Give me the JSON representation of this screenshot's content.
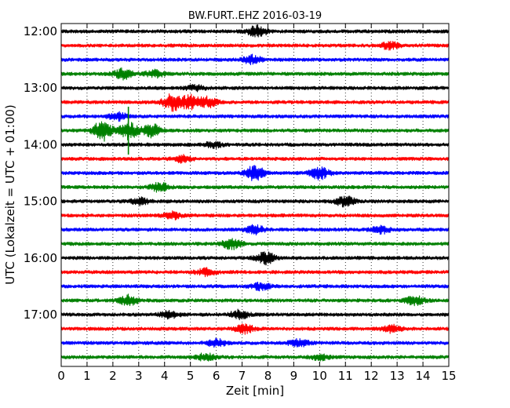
{
  "chart_data": {
    "type": "line",
    "title": "BW.FURT..EHZ 2016-03-19",
    "xlabel": "Zeit  [min]",
    "ylabel": "UTC (Lokalzeit = UTC + 01:00)",
    "xlim": [
      0,
      15
    ],
    "x_ticks": [
      "0",
      "1",
      "2",
      "3",
      "4",
      "5",
      "6",
      "7",
      "8",
      "9",
      "10",
      "11",
      "12",
      "13",
      "14",
      "15"
    ],
    "y_ticks": [
      "12:00",
      "13:00",
      "14:00",
      "15:00",
      "16:00",
      "17:00"
    ],
    "grid": "vertical dotted",
    "trace_row_minutes": 15,
    "trace_colors": [
      "#000000",
      "#ff0000",
      "#0000ff",
      "#008000"
    ],
    "traces": [
      {
        "start": "12:00",
        "color": "#000000",
        "events": [
          {
            "t": 7.6,
            "amp": 7
          }
        ]
      },
      {
        "start": "12:15",
        "color": "#ff0000",
        "events": [
          {
            "t": 12.7,
            "amp": 4
          }
        ]
      },
      {
        "start": "12:30",
        "color": "#0000ff",
        "events": [
          {
            "t": 7.4,
            "amp": 5
          }
        ]
      },
      {
        "start": "12:45",
        "color": "#008000",
        "events": [
          {
            "t": 2.4,
            "amp": 6
          },
          {
            "t": 3.6,
            "amp": 4
          }
        ]
      },
      {
        "start": "13:00",
        "color": "#000000",
        "events": [
          {
            "t": 5.2,
            "amp": 3
          }
        ]
      },
      {
        "start": "13:15",
        "color": "#ff0000",
        "events": [
          {
            "t": 4.3,
            "amp": 10
          },
          {
            "t": 5.0,
            "amp": 8
          },
          {
            "t": 5.7,
            "amp": 6
          }
        ]
      },
      {
        "start": "13:30",
        "color": "#0000ff",
        "events": [
          {
            "t": 2.2,
            "amp": 5
          }
        ]
      },
      {
        "start": "13:45",
        "color": "#008000",
        "events": [
          {
            "t": 1.6,
            "amp": 12
          },
          {
            "t": 2.6,
            "amp": 10
          },
          {
            "t": 3.5,
            "amp": 8
          }
        ]
      },
      {
        "start": "14:00",
        "color": "#000000",
        "events": [
          {
            "t": 5.9,
            "amp": 3
          }
        ]
      },
      {
        "start": "14:15",
        "color": "#ff0000",
        "events": [
          {
            "t": 4.7,
            "amp": 4
          }
        ]
      },
      {
        "start": "14:30",
        "color": "#0000ff",
        "events": [
          {
            "t": 7.5,
            "amp": 9
          },
          {
            "t": 10.0,
            "amp": 7
          }
        ]
      },
      {
        "start": "14:45",
        "color": "#008000",
        "events": [
          {
            "t": 3.8,
            "amp": 5
          }
        ]
      },
      {
        "start": "15:00",
        "color": "#000000",
        "events": [
          {
            "t": 11.0,
            "amp": 6
          },
          {
            "t": 3.0,
            "amp": 4
          }
        ]
      },
      {
        "start": "15:15",
        "color": "#ff0000",
        "events": [
          {
            "t": 4.3,
            "amp": 4
          }
        ]
      },
      {
        "start": "15:30",
        "color": "#0000ff",
        "events": [
          {
            "t": 7.5,
            "amp": 5
          },
          {
            "t": 12.4,
            "amp": 4
          }
        ]
      },
      {
        "start": "15:45",
        "color": "#008000",
        "events": [
          {
            "t": 6.6,
            "amp": 6
          }
        ]
      },
      {
        "start": "16:00",
        "color": "#000000",
        "events": [
          {
            "t": 7.9,
            "amp": 7
          }
        ]
      },
      {
        "start": "16:15",
        "color": "#ff0000",
        "events": [
          {
            "t": 5.6,
            "amp": 4
          }
        ]
      },
      {
        "start": "16:30",
        "color": "#0000ff",
        "events": [
          {
            "t": 7.7,
            "amp": 4
          }
        ]
      },
      {
        "start": "16:45",
        "color": "#008000",
        "events": [
          {
            "t": 2.6,
            "amp": 6
          },
          {
            "t": 13.7,
            "amp": 5
          }
        ]
      },
      {
        "start": "17:00",
        "color": "#000000",
        "events": [
          {
            "t": 6.9,
            "amp": 5
          },
          {
            "t": 4.2,
            "amp": 4
          }
        ]
      },
      {
        "start": "17:15",
        "color": "#ff0000",
        "events": [
          {
            "t": 7.1,
            "amp": 5
          },
          {
            "t": 12.8,
            "amp": 4
          }
        ]
      },
      {
        "start": "17:30",
        "color": "#0000ff",
        "events": [
          {
            "t": 9.2,
            "amp": 5
          },
          {
            "t": 6.0,
            "amp": 4
          }
        ]
      },
      {
        "start": "17:45",
        "color": "#008000",
        "events": [
          {
            "t": 5.6,
            "amp": 4
          },
          {
            "t": 10.0,
            "amp": 3
          }
        ]
      }
    ]
  }
}
